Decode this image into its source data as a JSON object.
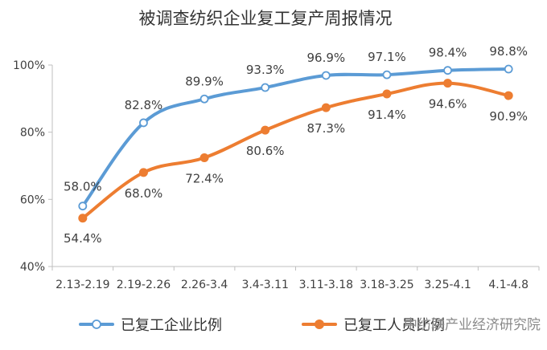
{
  "chart_data": {
    "type": "line",
    "title": "被调查纺织企业复工复产周报情况",
    "categories": [
      "2.13-2.19",
      "2.19-2.26",
      "2.26-3.4",
      "3.4-3.11",
      "3.11-3.18",
      "3.18-3.25",
      "3.25-4.1",
      "4.1-4.8"
    ],
    "series": [
      {
        "name": "已复工企业比例",
        "color": "#5b9bd5",
        "values": [
          58.0,
          82.8,
          89.9,
          93.3,
          96.9,
          97.1,
          98.4,
          98.8
        ],
        "labels": [
          "58.0%",
          "82.8%",
          "89.9%",
          "93.3%",
          "96.9%",
          "97.1%",
          "98.4%",
          "98.8%"
        ]
      },
      {
        "name": "已复工人员比例",
        "color": "#ed7d31",
        "values": [
          54.4,
          68.0,
          72.4,
          80.6,
          87.3,
          91.4,
          94.6,
          90.9
        ],
        "labels": [
          "54.4%",
          "68.0%",
          "72.4%",
          "80.6%",
          "87.3%",
          "91.4%",
          "94.6%",
          "90.9%"
        ]
      }
    ],
    "yticks": [
      "40%",
      "60%",
      "80%",
      "100%"
    ],
    "ylim": [
      40,
      100
    ],
    "grid": false,
    "legend": "bottom",
    "xlabel": "",
    "ylabel": ""
  },
  "watermark": "中纺联产业经济研究院"
}
